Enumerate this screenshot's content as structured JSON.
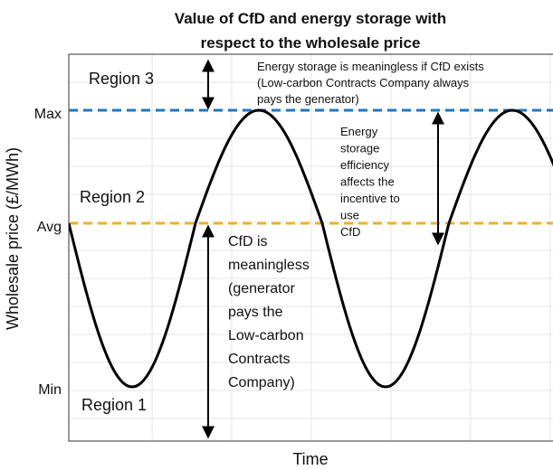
{
  "title": [
    "Value of CfD and energy storage with",
    "respect to the wholesale price"
  ],
  "y_axis_label": "Wholesale price (£/MWh)",
  "x_axis_label": "Time",
  "y_ticks": [
    "Max",
    "Avg",
    "Min"
  ],
  "regions": [
    "Region 3",
    "Region 2",
    "Region 1"
  ],
  "annotations": {
    "storage_meaningless": [
      "Energy storage is meaningless if CfD exists",
      "(Low-carbon Contracts Company always",
      "pays the generator)"
    ],
    "efficiency": [
      "Energy",
      "storage",
      "efficiency",
      "affects the",
      "incentive to",
      "use",
      "CfD"
    ],
    "cfd_meaningless": [
      "CfD is",
      "meaningless",
      "(generator",
      "pays the",
      "Low-carbon",
      "Contracts",
      "Company)"
    ]
  }
}
